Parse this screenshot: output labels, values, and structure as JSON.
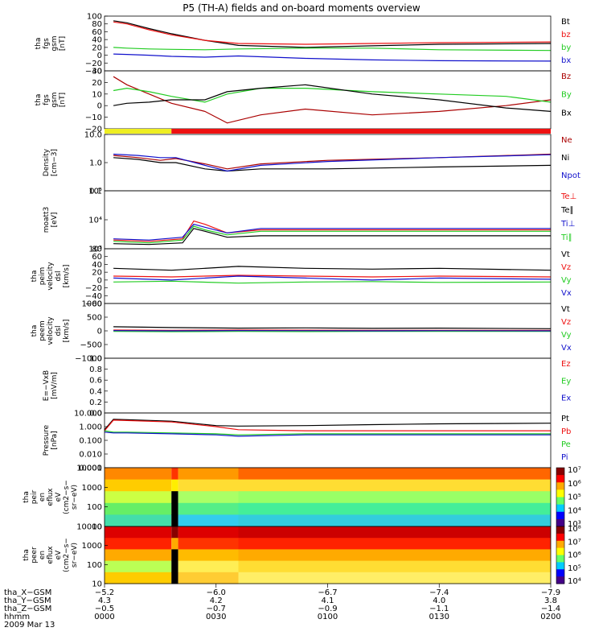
{
  "title": "P5 (TH-A) fields and on-board moments overview",
  "colors": {
    "black": "#000000",
    "red": "#ee1111",
    "darkred": "#aa0000",
    "green": "#22cc22",
    "blue": "#1111cc",
    "yellow": "#eeee22"
  },
  "chart_data": [
    {
      "type": "line",
      "ylabel_lines": [
        "tha",
        "fgs",
        "gsm",
        "[nT]"
      ],
      "ylim": [
        -40,
        100
      ],
      "y_ticks": [
        "100",
        "80",
        "60",
        "40",
        "20",
        "0",
        "−20",
        "−40"
      ],
      "legend": [
        {
          "label": "Bt",
          "color": "#000000"
        },
        {
          "label": "bz",
          "color": "#ee1111"
        },
        {
          "label": "by",
          "color": "#22cc22"
        },
        {
          "label": "bx",
          "color": "#1111cc"
        }
      ],
      "series": [
        {
          "color": "#000000",
          "x": [
            4,
            10,
            20,
            30,
            45,
            60,
            90,
            120,
            150,
            200
          ],
          "y": [
            88,
            83,
            68,
            55,
            38,
            25,
            20,
            24,
            28,
            30
          ]
        },
        {
          "color": "#ee1111",
          "x": [
            4,
            10,
            20,
            30,
            45,
            60,
            90,
            120,
            150,
            200
          ],
          "y": [
            85,
            80,
            65,
            52,
            38,
            30,
            28,
            30,
            32,
            34
          ]
        },
        {
          "color": "#22cc22",
          "x": [
            4,
            10,
            20,
            30,
            45,
            60,
            90,
            120,
            150,
            200
          ],
          "y": [
            20,
            18,
            16,
            15,
            14,
            16,
            18,
            18,
            14,
            12
          ]
        },
        {
          "color": "#1111cc",
          "x": [
            4,
            10,
            20,
            30,
            45,
            60,
            90,
            120,
            150,
            200
          ],
          "y": [
            3,
            2,
            0,
            -3,
            -5,
            -2,
            -8,
            -12,
            -14,
            -15
          ]
        }
      ]
    },
    {
      "type": "line",
      "ylabel_lines": [
        "tha",
        "fgs",
        "gsm",
        "[nT]"
      ],
      "ylim": [
        -20,
        30
      ],
      "y_ticks": [
        "30",
        "20",
        "10",
        "0",
        "−10",
        "−20"
      ],
      "legend": [
        {
          "label": "Bz",
          "color": "#aa0000"
        },
        {
          "label": "By",
          "color": "#22cc22"
        },
        {
          "label": "Bx",
          "color": "#000000"
        }
      ],
      "series": [
        {
          "color": "#aa0000",
          "x": [
            4,
            10,
            20,
            30,
            45,
            55,
            70,
            90,
            120,
            150,
            180,
            200
          ],
          "y": [
            25,
            18,
            10,
            2,
            -5,
            -15,
            -8,
            -3,
            -8,
            -5,
            0,
            5
          ]
        },
        {
          "color": "#22cc22",
          "x": [
            4,
            10,
            20,
            30,
            45,
            55,
            70,
            90,
            120,
            150,
            180,
            200
          ],
          "y": [
            13,
            15,
            12,
            8,
            3,
            10,
            15,
            15,
            12,
            10,
            8,
            3
          ]
        },
        {
          "color": "#000000",
          "x": [
            4,
            10,
            20,
            30,
            45,
            55,
            70,
            90,
            120,
            150,
            180,
            200
          ],
          "y": [
            0,
            2,
            3,
            5,
            5,
            12,
            15,
            18,
            10,
            5,
            -2,
            -5
          ]
        }
      ]
    },
    {
      "type": "bar",
      "name": "mode-bar",
      "segments": [
        {
          "from": 0,
          "to": 30,
          "color": "#eeee22"
        },
        {
          "from": 30,
          "to": 200,
          "color": "#ee1111"
        }
      ]
    },
    {
      "type": "line",
      "ylabel_lines": [
        "Density",
        "[cm−3]"
      ],
      "scale": "log",
      "ylim": [
        0.1,
        10
      ],
      "y_ticks": [
        "10.0",
        "1.0",
        "0.1"
      ],
      "legend": [
        {
          "label": "Ne",
          "color": "#aa0000"
        },
        {
          "label": "Ni",
          "color": "#000000"
        },
        {
          "label": "Npot",
          "color": "#1111cc"
        }
      ],
      "series": [
        {
          "color": "#aa0000",
          "x": [
            4,
            15,
            25,
            32,
            45,
            55,
            70,
            100,
            150,
            200
          ],
          "y": [
            1.8,
            1.5,
            1.2,
            1.4,
            0.9,
            0.6,
            0.9,
            1.2,
            1.5,
            2.0
          ]
        },
        {
          "color": "#000000",
          "x": [
            4,
            15,
            25,
            32,
            45,
            55,
            70,
            100,
            150,
            200
          ],
          "y": [
            1.5,
            1.3,
            1.0,
            1.0,
            0.6,
            0.5,
            0.6,
            0.6,
            0.7,
            0.8
          ]
        },
        {
          "color": "#1111cc",
          "x": [
            4,
            15,
            25,
            32,
            45,
            55,
            70,
            100,
            150,
            200
          ],
          "y": [
            2.0,
            1.8,
            1.5,
            1.5,
            0.8,
            0.5,
            0.8,
            1.1,
            1.5,
            1.9
          ]
        }
      ]
    },
    {
      "type": "line",
      "ylabel_lines": [
        "moatt3",
        "[eV]"
      ],
      "scale": "log",
      "ylim": [
        1000,
        100000
      ],
      "y_ticks": [
        "10⁵",
        "10⁴",
        "10³"
      ],
      "legend": [
        {
          "label": "Te⊥",
          "color": "#ee1111"
        },
        {
          "label": "Te∥",
          "color": "#000000"
        },
        {
          "label": "Ti⊥",
          "color": "#1111cc"
        },
        {
          "label": "Ti∥",
          "color": "#22cc22"
        }
      ],
      "series": [
        {
          "color": "#ee1111",
          "x": [
            4,
            20,
            35,
            40,
            45,
            55,
            70,
            100,
            150,
            200
          ],
          "y": [
            2000,
            1800,
            2200,
            9000,
            7000,
            3500,
            4500,
            4500,
            4500,
            4500
          ]
        },
        {
          "color": "#000000",
          "x": [
            4,
            20,
            35,
            40,
            45,
            55,
            70,
            100,
            150,
            200
          ],
          "y": [
            1500,
            1400,
            1600,
            5000,
            4000,
            2500,
            2800,
            2800,
            2800,
            2800
          ]
        },
        {
          "color": "#1111cc",
          "x": [
            4,
            20,
            35,
            40,
            45,
            55,
            70,
            100,
            150,
            200
          ],
          "y": [
            2200,
            2000,
            2500,
            7000,
            5500,
            3500,
            5000,
            5000,
            5000,
            5000
          ]
        },
        {
          "color": "#22cc22",
          "x": [
            4,
            20,
            35,
            40,
            45,
            55,
            70,
            100,
            150,
            200
          ],
          "y": [
            1800,
            1600,
            2000,
            6000,
            4500,
            3000,
            4000,
            4000,
            4000,
            4000
          ]
        }
      ]
    },
    {
      "type": "line",
      "ylabel_lines": [
        "tha",
        "peim",
        "velocity",
        "dsl",
        "[km/s]"
      ],
      "ylim": [
        -60,
        80
      ],
      "y_ticks": [
        "80",
        "60",
        "40",
        "20",
        "0",
        "−20",
        "−40",
        "−60"
      ],
      "legend": [
        {
          "label": "Vt",
          "color": "#000000"
        },
        {
          "label": "Vz",
          "color": "#ee1111"
        },
        {
          "label": "Vy",
          "color": "#22cc22"
        },
        {
          "label": "Vx",
          "color": "#1111cc"
        }
      ],
      "series": [
        {
          "color": "#000000",
          "x": [
            4,
            30,
            60,
            90,
            120,
            150,
            200
          ],
          "y": [
            30,
            25,
            35,
            30,
            28,
            30,
            25
          ]
        },
        {
          "color": "#ee1111",
          "x": [
            4,
            30,
            60,
            90,
            120,
            150,
            200
          ],
          "y": [
            10,
            8,
            12,
            10,
            8,
            10,
            8
          ]
        },
        {
          "color": "#22cc22",
          "x": [
            4,
            30,
            60,
            90,
            120,
            150,
            200
          ],
          "y": [
            -5,
            -3,
            -8,
            -5,
            -4,
            -6,
            -5
          ]
        },
        {
          "color": "#1111cc",
          "x": [
            4,
            30,
            60,
            90,
            120,
            150,
            200
          ],
          "y": [
            5,
            0,
            10,
            5,
            0,
            5,
            2
          ]
        }
      ]
    },
    {
      "type": "line",
      "ylabel_lines": [
        "tha",
        "peem",
        "velocity",
        "dsl",
        "[km/s]"
      ],
      "ylim": [
        -1000,
        1000
      ],
      "y_ticks": [
        "1000",
        "500",
        "0",
        "−500",
        "−1000"
      ],
      "legend": [
        {
          "label": "Vt",
          "color": "#000000"
        },
        {
          "label": "Vz",
          "color": "#ee1111"
        },
        {
          "label": "Vy",
          "color": "#22cc22"
        },
        {
          "label": "Vx",
          "color": "#1111cc"
        }
      ],
      "series": [
        {
          "color": "#000000",
          "x": [
            4,
            30,
            60,
            90,
            120,
            150,
            200
          ],
          "y": [
            150,
            120,
            100,
            110,
            90,
            100,
            80
          ]
        },
        {
          "color": "#ee1111",
          "x": [
            4,
            30,
            60,
            90,
            120,
            150,
            200
          ],
          "y": [
            30,
            20,
            30,
            25,
            20,
            20,
            20
          ]
        },
        {
          "color": "#22cc22",
          "x": [
            4,
            30,
            60,
            90,
            120,
            150,
            200
          ],
          "y": [
            -20,
            -30,
            -20,
            -25,
            -20,
            -20,
            -20
          ]
        },
        {
          "color": "#1111cc",
          "x": [
            4,
            30,
            60,
            90,
            120,
            150,
            200
          ],
          "y": [
            10,
            0,
            10,
            5,
            0,
            5,
            0
          ]
        }
      ]
    },
    {
      "type": "line",
      "ylabel_lines": [
        "E=−VxB",
        "[mV/m]"
      ],
      "ylim": [
        0,
        1
      ],
      "y_ticks": [
        "1.0",
        "0.8",
        "0.6",
        "0.4",
        "0.2",
        "0.0"
      ],
      "legend": [
        {
          "label": "Ez",
          "color": "#ee1111"
        },
        {
          "label": "Ey",
          "color": "#22cc22"
        },
        {
          "label": "Ex",
          "color": "#1111cc"
        }
      ],
      "series": []
    },
    {
      "type": "line",
      "ylabel_lines": [
        "Pressure",
        "[nPa]"
      ],
      "scale": "log",
      "ylim": [
        0.001,
        10
      ],
      "y_ticks": [
        "10.000",
        "1.000",
        "0.100",
        "0.010",
        "0.001"
      ],
      "legend": [
        {
          "label": "Pt",
          "color": "#000000"
        },
        {
          "label": "Pb",
          "color": "#ee1111"
        },
        {
          "label": "Pe",
          "color": "#22cc22"
        },
        {
          "label": "Pi",
          "color": "#1111cc"
        }
      ],
      "series": [
        {
          "color": "#000000",
          "x": [
            0,
            4,
            10,
            30,
            50,
            60,
            90,
            120,
            150,
            200
          ],
          "y": [
            0.6,
            3.5,
            3.2,
            2.5,
            1.2,
            1.1,
            1.2,
            1.4,
            1.6,
            1.8
          ]
        },
        {
          "color": "#ee1111",
          "x": [
            0,
            4,
            10,
            30,
            50,
            60,
            90,
            120,
            150,
            200
          ],
          "y": [
            0.5,
            3.0,
            2.8,
            2.2,
            1.0,
            0.6,
            0.5,
            0.5,
            0.5,
            0.5
          ]
        },
        {
          "color": "#22cc22",
          "x": [
            0,
            4,
            10,
            30,
            50,
            60,
            90,
            120,
            150,
            200
          ],
          "y": [
            0.5,
            0.4,
            0.4,
            0.35,
            0.3,
            0.25,
            0.3,
            0.3,
            0.3,
            0.3
          ]
        },
        {
          "color": "#1111cc",
          "x": [
            0,
            4,
            10,
            30,
            50,
            60,
            90,
            120,
            150,
            200
          ],
          "y": [
            0.4,
            0.35,
            0.35,
            0.3,
            0.25,
            0.2,
            0.25,
            0.25,
            0.25,
            0.25
          ]
        }
      ]
    },
    {
      "type": "heatmap",
      "ylabel_lines": [
        "tha",
        "peir",
        "en",
        "eflux",
        "eV",
        "(cm2−s−",
        "sr−eV)"
      ],
      "ylim": [
        10,
        20000
      ],
      "y_ticks": [
        "10000",
        "1000",
        "100",
        "10"
      ],
      "cbar_ticks": [
        "10⁷",
        "10⁶",
        "10⁵",
        "10⁴",
        "10³"
      ],
      "columns": [
        {
          "x0": 0,
          "x1": 30,
          "bands": [
            "#ff8800",
            "#ffcc00",
            "#ccff44",
            "#66ee66",
            "#44ddaa"
          ]
        },
        {
          "x0": 30,
          "x1": 33,
          "bands": [
            "#ff3300",
            "#ffee00",
            "#000000",
            "#000000",
            "#000000"
          ]
        },
        {
          "x0": 33,
          "x1": 60,
          "bands": [
            "#ff9900",
            "#ffdd33",
            "#aaff66",
            "#55ee88",
            "#33ccee"
          ]
        },
        {
          "x0": 60,
          "x1": 200,
          "bands": [
            "#ff6600",
            "#ffdd33",
            "#99ff66",
            "#44ee99",
            "#33ccdd"
          ]
        }
      ]
    },
    {
      "type": "heatmap",
      "ylabel_lines": [
        "tha",
        "peer",
        "en",
        "eflux",
        "eV",
        "(cm2−s−",
        "sr−eV)"
      ],
      "ylim": [
        10,
        20000
      ],
      "y_ticks": [
        "10000",
        "1000",
        "100",
        "10"
      ],
      "cbar_ticks": [
        "10⁸",
        "10⁷",
        "10⁶",
        "10⁵",
        "10⁴"
      ],
      "columns": [
        {
          "x0": 0,
          "x1": 30,
          "bands": [
            "#dd0000",
            "#ff2200",
            "#ffaa00",
            "#bbff55",
            "#ffcc00"
          ]
        },
        {
          "x0": 30,
          "x1": 33,
          "bands": [
            "#880000",
            "#ffaa00",
            "#000000",
            "#000000",
            "#000000"
          ]
        },
        {
          "x0": 33,
          "x1": 60,
          "bands": [
            "#dd0000",
            "#ff3300",
            "#ffbb00",
            "#ffee55",
            "#ffcc33"
          ]
        },
        {
          "x0": 60,
          "x1": 200,
          "bands": [
            "#cc0000",
            "#ff2200",
            "#ffaa00",
            "#ffdd33",
            "#ffee66"
          ]
        }
      ]
    }
  ],
  "x_axis": {
    "rows": [
      {
        "label": "tha_X−GSM",
        "values": [
          "−5.2",
          "−6.0",
          "−6.7",
          "−7.4",
          "−7.9"
        ]
      },
      {
        "label": "tha_Y−GSM",
        "values": [
          "4.3",
          "4.2",
          "4.1",
          "4.0",
          "3.8"
        ]
      },
      {
        "label": "tha_Z−GSM",
        "values": [
          "−0.5",
          "−0.7",
          "−0.9",
          "−1.1",
          "−1.4"
        ]
      },
      {
        "label": "hhmm",
        "values": [
          "0000",
          "0030",
          "0100",
          "0130",
          "0200"
        ]
      }
    ],
    "date": "2009 Mar 13"
  }
}
